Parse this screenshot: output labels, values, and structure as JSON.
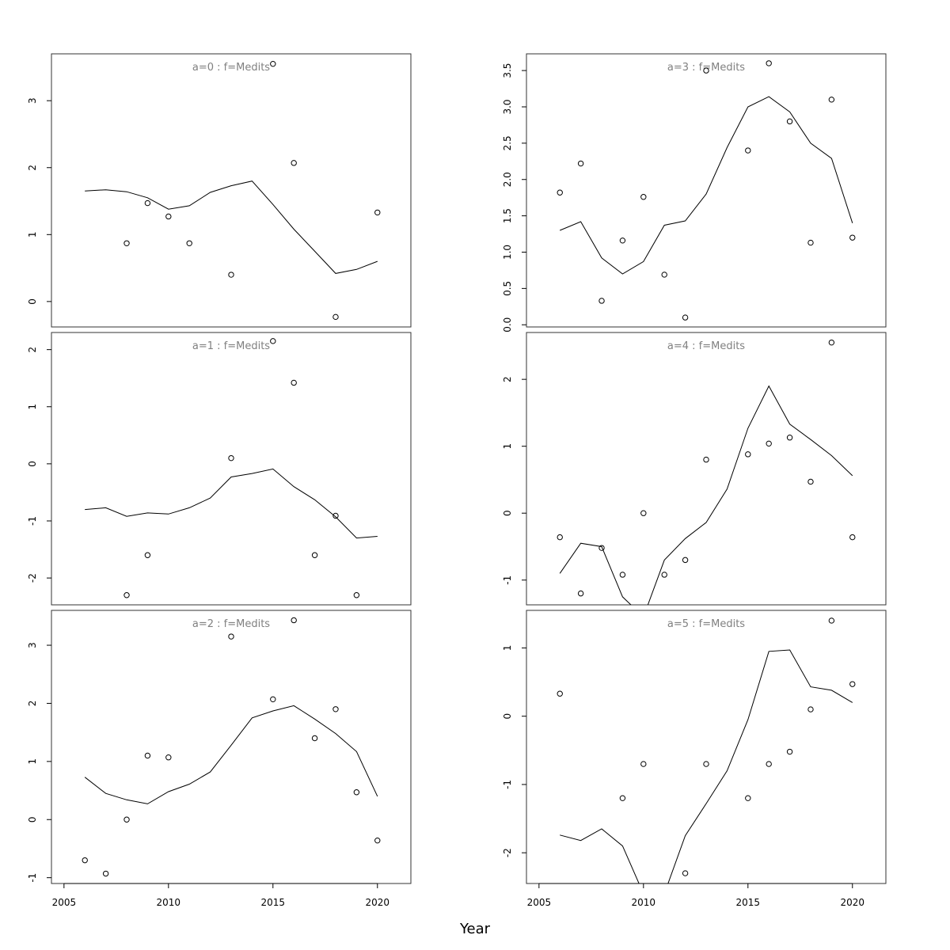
{
  "chart_data": {
    "type": "scatter",
    "xlabel": "Year",
    "x": [
      2006,
      2007,
      2008,
      2009,
      2010,
      2011,
      2012,
      2013,
      2014,
      2015,
      2016,
      2017,
      2018,
      2019,
      2020
    ],
    "xticks": [
      2005,
      2010,
      2015,
      2020
    ],
    "xlim": [
      2004.4,
      2021.6
    ],
    "line_color": "#000000",
    "title_color": "#808080",
    "panels": [
      {
        "title": "a=0 : f=Medits",
        "ylim": [
          -0.38,
          3.7
        ],
        "yticks": [
          0,
          1,
          2,
          3
        ],
        "ytick_labels": [
          "0",
          "1",
          "2",
          "3"
        ],
        "fit": [
          1.65,
          1.67,
          1.64,
          1.55,
          1.38,
          1.43,
          1.63,
          1.73,
          1.8,
          1.45,
          1.08,
          0.75,
          0.42,
          0.48,
          0.6
        ],
        "obs": [
          [
            2008,
            0.87
          ],
          [
            2009,
            1.47
          ],
          [
            2010,
            1.27
          ],
          [
            2011,
            0.87
          ],
          [
            2013,
            0.4
          ],
          [
            2015,
            3.55
          ],
          [
            2016,
            2.07
          ],
          [
            2018,
            -0.23
          ],
          [
            2020,
            1.33
          ]
        ]
      },
      {
        "title": "a=1 : f=Medits",
        "ylim": [
          -2.47,
          2.3
        ],
        "yticks": [
          -2,
          -1,
          0,
          1,
          2
        ],
        "ytick_labels": [
          "-2",
          "-1",
          "0",
          "1",
          "2"
        ],
        "fit": [
          -0.8,
          -0.77,
          -0.92,
          -0.86,
          -0.88,
          -0.77,
          -0.6,
          -0.23,
          -0.17,
          -0.09,
          -0.4,
          -0.63,
          -0.93,
          -1.3,
          -1.27
        ],
        "obs": [
          [
            2008,
            -2.3
          ],
          [
            2009,
            -1.6
          ],
          [
            2013,
            0.1
          ],
          [
            2015,
            2.15
          ],
          [
            2016,
            1.42
          ],
          [
            2017,
            -1.6
          ],
          [
            2018,
            -0.91
          ],
          [
            2019,
            -2.3
          ]
        ]
      },
      {
        "title": "a=2 : f=Medits",
        "ylim": [
          -1.1,
          3.6
        ],
        "yticks": [
          -1,
          0,
          1,
          2,
          3
        ],
        "ytick_labels": [
          "-1",
          "0",
          "1",
          "2",
          "3"
        ],
        "fit": [
          0.73,
          0.45,
          0.34,
          0.27,
          0.48,
          0.61,
          0.82,
          1.28,
          1.75,
          1.87,
          1.96,
          1.73,
          1.48,
          1.17,
          0.4
        ],
        "obs": [
          [
            2006,
            -0.7
          ],
          [
            2007,
            -0.93
          ],
          [
            2008,
            0.0
          ],
          [
            2009,
            1.1
          ],
          [
            2010,
            1.07
          ],
          [
            2013,
            3.15
          ],
          [
            2015,
            2.07
          ],
          [
            2016,
            3.43
          ],
          [
            2017,
            1.4
          ],
          [
            2018,
            1.9
          ],
          [
            2019,
            0.47
          ],
          [
            2020,
            -0.36
          ]
        ]
      },
      {
        "title": "a=3 : f=Medits",
        "ylim": [
          -0.03,
          3.73
        ],
        "yticks": [
          0.0,
          0.5,
          1.0,
          1.5,
          2.0,
          2.5,
          3.0,
          3.5
        ],
        "ytick_labels": [
          "0.0",
          "0.5",
          "1.0",
          "1.5",
          "2.0",
          "2.5",
          "3.0",
          "3.5"
        ],
        "fit": [
          1.3,
          1.42,
          0.92,
          0.7,
          0.87,
          1.37,
          1.43,
          1.8,
          2.44,
          3.0,
          3.14,
          2.93,
          2.5,
          2.29,
          1.4
        ],
        "obs": [
          [
            2006,
            1.82
          ],
          [
            2007,
            2.22
          ],
          [
            2008,
            0.33
          ],
          [
            2009,
            1.16
          ],
          [
            2010,
            1.76
          ],
          [
            2011,
            0.69
          ],
          [
            2012,
            0.1
          ],
          [
            2013,
            3.5
          ],
          [
            2015,
            2.4
          ],
          [
            2016,
            3.6
          ],
          [
            2017,
            2.8
          ],
          [
            2018,
            1.13
          ],
          [
            2019,
            3.1
          ],
          [
            2020,
            1.2
          ]
        ]
      },
      {
        "title": "a=4 : f=Medits",
        "ylim": [
          -1.37,
          2.7
        ],
        "yticks": [
          -1,
          0,
          1,
          2
        ],
        "ytick_labels": [
          "-1",
          "0",
          "1",
          "2"
        ],
        "fit": [
          -0.9,
          -0.45,
          -0.5,
          -1.25,
          -1.55,
          -0.7,
          -0.38,
          -0.14,
          0.36,
          1.27,
          1.9,
          1.33,
          1.1,
          0.86,
          0.56
        ],
        "obs": [
          [
            2006,
            -0.36
          ],
          [
            2007,
            -1.2
          ],
          [
            2008,
            -0.52
          ],
          [
            2009,
            -0.92
          ],
          [
            2010,
            0.0
          ],
          [
            2011,
            -0.92
          ],
          [
            2012,
            -0.7
          ],
          [
            2013,
            0.8
          ],
          [
            2015,
            0.88
          ],
          [
            2016,
            1.04
          ],
          [
            2017,
            1.13
          ],
          [
            2018,
            0.47
          ],
          [
            2019,
            2.55
          ],
          [
            2020,
            -0.36
          ]
        ]
      },
      {
        "title": "a=5 : f=Medits",
        "ylim": [
          -2.45,
          1.55
        ],
        "yticks": [
          -2,
          -1,
          0,
          1
        ],
        "ytick_labels": [
          "-2",
          "-1",
          "0",
          "1"
        ],
        "fit": [
          -1.74,
          -1.82,
          -1.65,
          -1.9,
          -2.6,
          -2.6,
          -1.75,
          -1.28,
          -0.8,
          -0.05,
          0.95,
          0.97,
          0.43,
          0.38,
          0.2
        ],
        "obs": [
          [
            2006,
            0.33
          ],
          [
            2009,
            -1.2
          ],
          [
            2010,
            -0.7
          ],
          [
            2012,
            -2.3
          ],
          [
            2013,
            -0.7
          ],
          [
            2015,
            -1.2
          ],
          [
            2016,
            -0.7
          ],
          [
            2017,
            -0.52
          ],
          [
            2018,
            0.1
          ],
          [
            2019,
            1.4
          ],
          [
            2020,
            0.47
          ]
        ]
      }
    ]
  }
}
